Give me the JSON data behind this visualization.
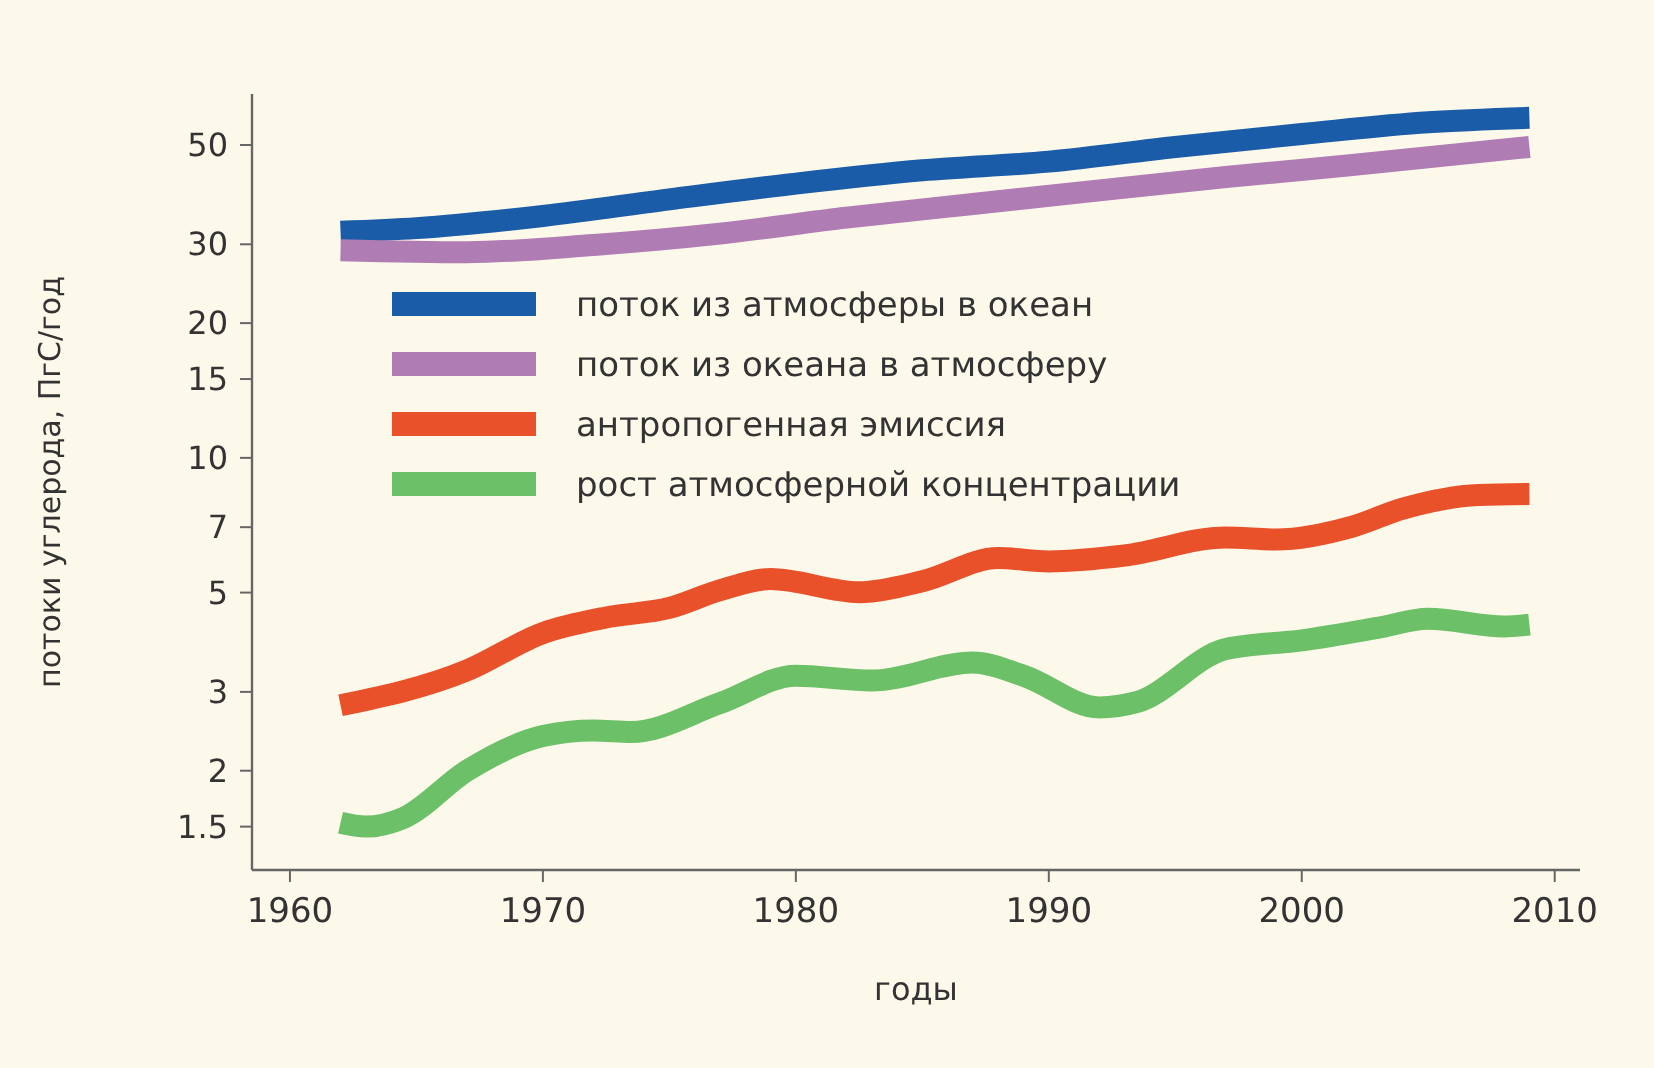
{
  "chart_data": {
    "type": "line",
    "xlabel": "годы",
    "ylabel": "потоки углерода, ПгС/год",
    "log": "y",
    "grid": false,
    "legend": "top left",
    "line_style": "solid",
    "marker": "none",
    "xlim": [
      1958.5,
      2011
    ],
    "xticks": [
      1960,
      1970,
      1980,
      1990,
      2000,
      2010
    ],
    "ylim": [
      1.2,
      65
    ],
    "yticks": [
      1.5,
      2,
      3,
      5,
      7,
      10,
      15,
      20,
      30,
      50
    ],
    "series": [
      {
        "name": "поток из атмосферы в океан",
        "color": "#1a5ca8",
        "x": [
          1962,
          1965,
          1970,
          1975,
          1980,
          1985,
          1990,
          1995,
          2000,
          2005,
          2009
        ],
        "values": [
          32,
          32.6,
          34.7,
          37.8,
          41,
          43.9,
          45.9,
          49.5,
          52.9,
          56.2,
          57.5
        ]
      },
      {
        "name": "поток из океана в атмосферу",
        "color": "#b07cb4",
        "x": [
          1962,
          1967,
          1972,
          1977,
          1982,
          1987,
          1992,
          1997,
          2002,
          2009
        ],
        "values": [
          29.1,
          28.8,
          29.9,
          31.7,
          34.4,
          36.9,
          39.6,
          42.4,
          45.1,
          49.5
        ]
      },
      {
        "name": "антропогенная эмиссия",
        "color": "#e8512a",
        "x": [
          1962,
          1967,
          1970,
          1972.5,
          1975,
          1977,
          1979,
          1982.5,
          1985,
          1988,
          1990,
          1993,
          1997,
          1999,
          2002,
          2004,
          2007,
          2009
        ],
        "values": [
          2.8,
          3.35,
          4.06,
          4.4,
          4.62,
          5.06,
          5.36,
          5.01,
          5.3,
          5.97,
          5.87,
          6.05,
          6.64,
          6.57,
          7.02,
          7.7,
          8.26,
          8.3
        ]
      },
      {
        "name": "рост атмосферной концентрации",
        "color": "#6cc067",
        "x": [
          1962,
          1963,
          1964.5,
          1967,
          1970,
          1972,
          1973.5,
          1977,
          1980,
          1983,
          1987,
          1989,
          1992,
          1993.5,
          1997,
          2000,
          2003,
          2005,
          2008,
          2009
        ],
        "values": [
          1.53,
          1.5,
          1.57,
          2,
          2.39,
          2.46,
          2.44,
          2.83,
          3.26,
          3.18,
          3.49,
          3.26,
          2.77,
          2.85,
          3.74,
          3.91,
          4.17,
          4.37,
          4.2,
          4.24
        ]
      }
    ]
  }
}
